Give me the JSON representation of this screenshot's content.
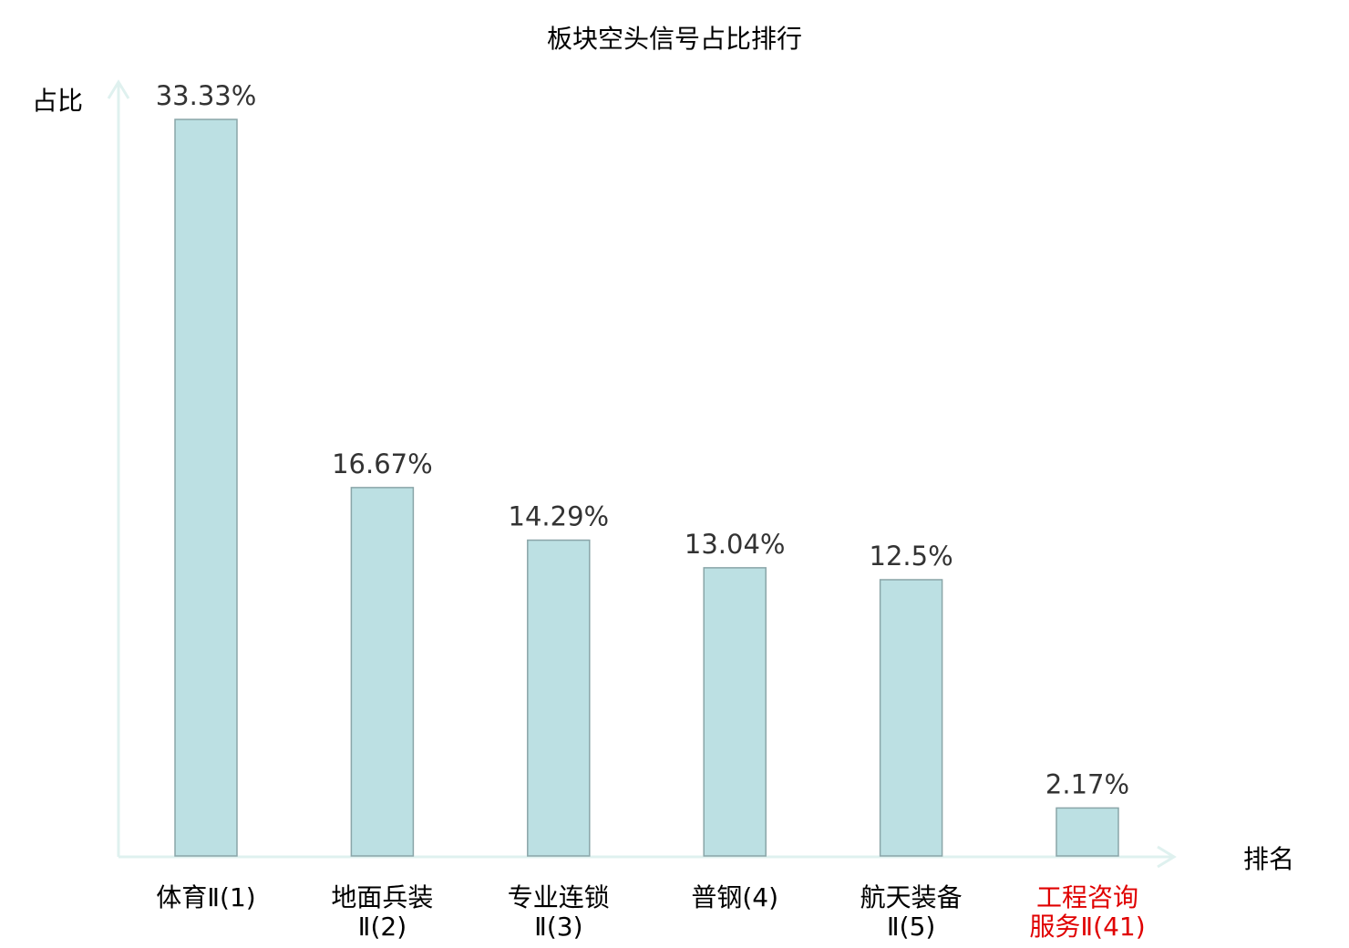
{
  "chart_data": {
    "type": "bar",
    "title": "板块空头信号占比排行",
    "ylabel": "占比",
    "xlabel": "排名",
    "ylim": [
      0,
      33.33
    ],
    "grid": false,
    "categories": [
      [
        "体育Ⅱ(1)"
      ],
      [
        "地面兵装",
        "Ⅱ(2)"
      ],
      [
        "专业连锁",
        "Ⅱ(3)"
      ],
      [
        "普钢(4)"
      ],
      [
        "航天装备",
        "Ⅱ(5)"
      ],
      [
        "工程咨询",
        "服务Ⅱ(41)"
      ]
    ],
    "values": [
      33.33,
      16.67,
      14.29,
      13.04,
      12.5,
      2.17
    ],
    "value_labels": [
      "33.33%",
      "16.67%",
      "14.29%",
      "13.04%",
      "12.5%",
      "2.17%"
    ],
    "highlight_index": 5,
    "colors": {
      "bar": "#bce0e3",
      "bar_stroke": "#8aa5a8",
      "axis": "#dff1ef",
      "highlight": "#e00000",
      "text": "#000000",
      "value_text": "#333333"
    }
  }
}
